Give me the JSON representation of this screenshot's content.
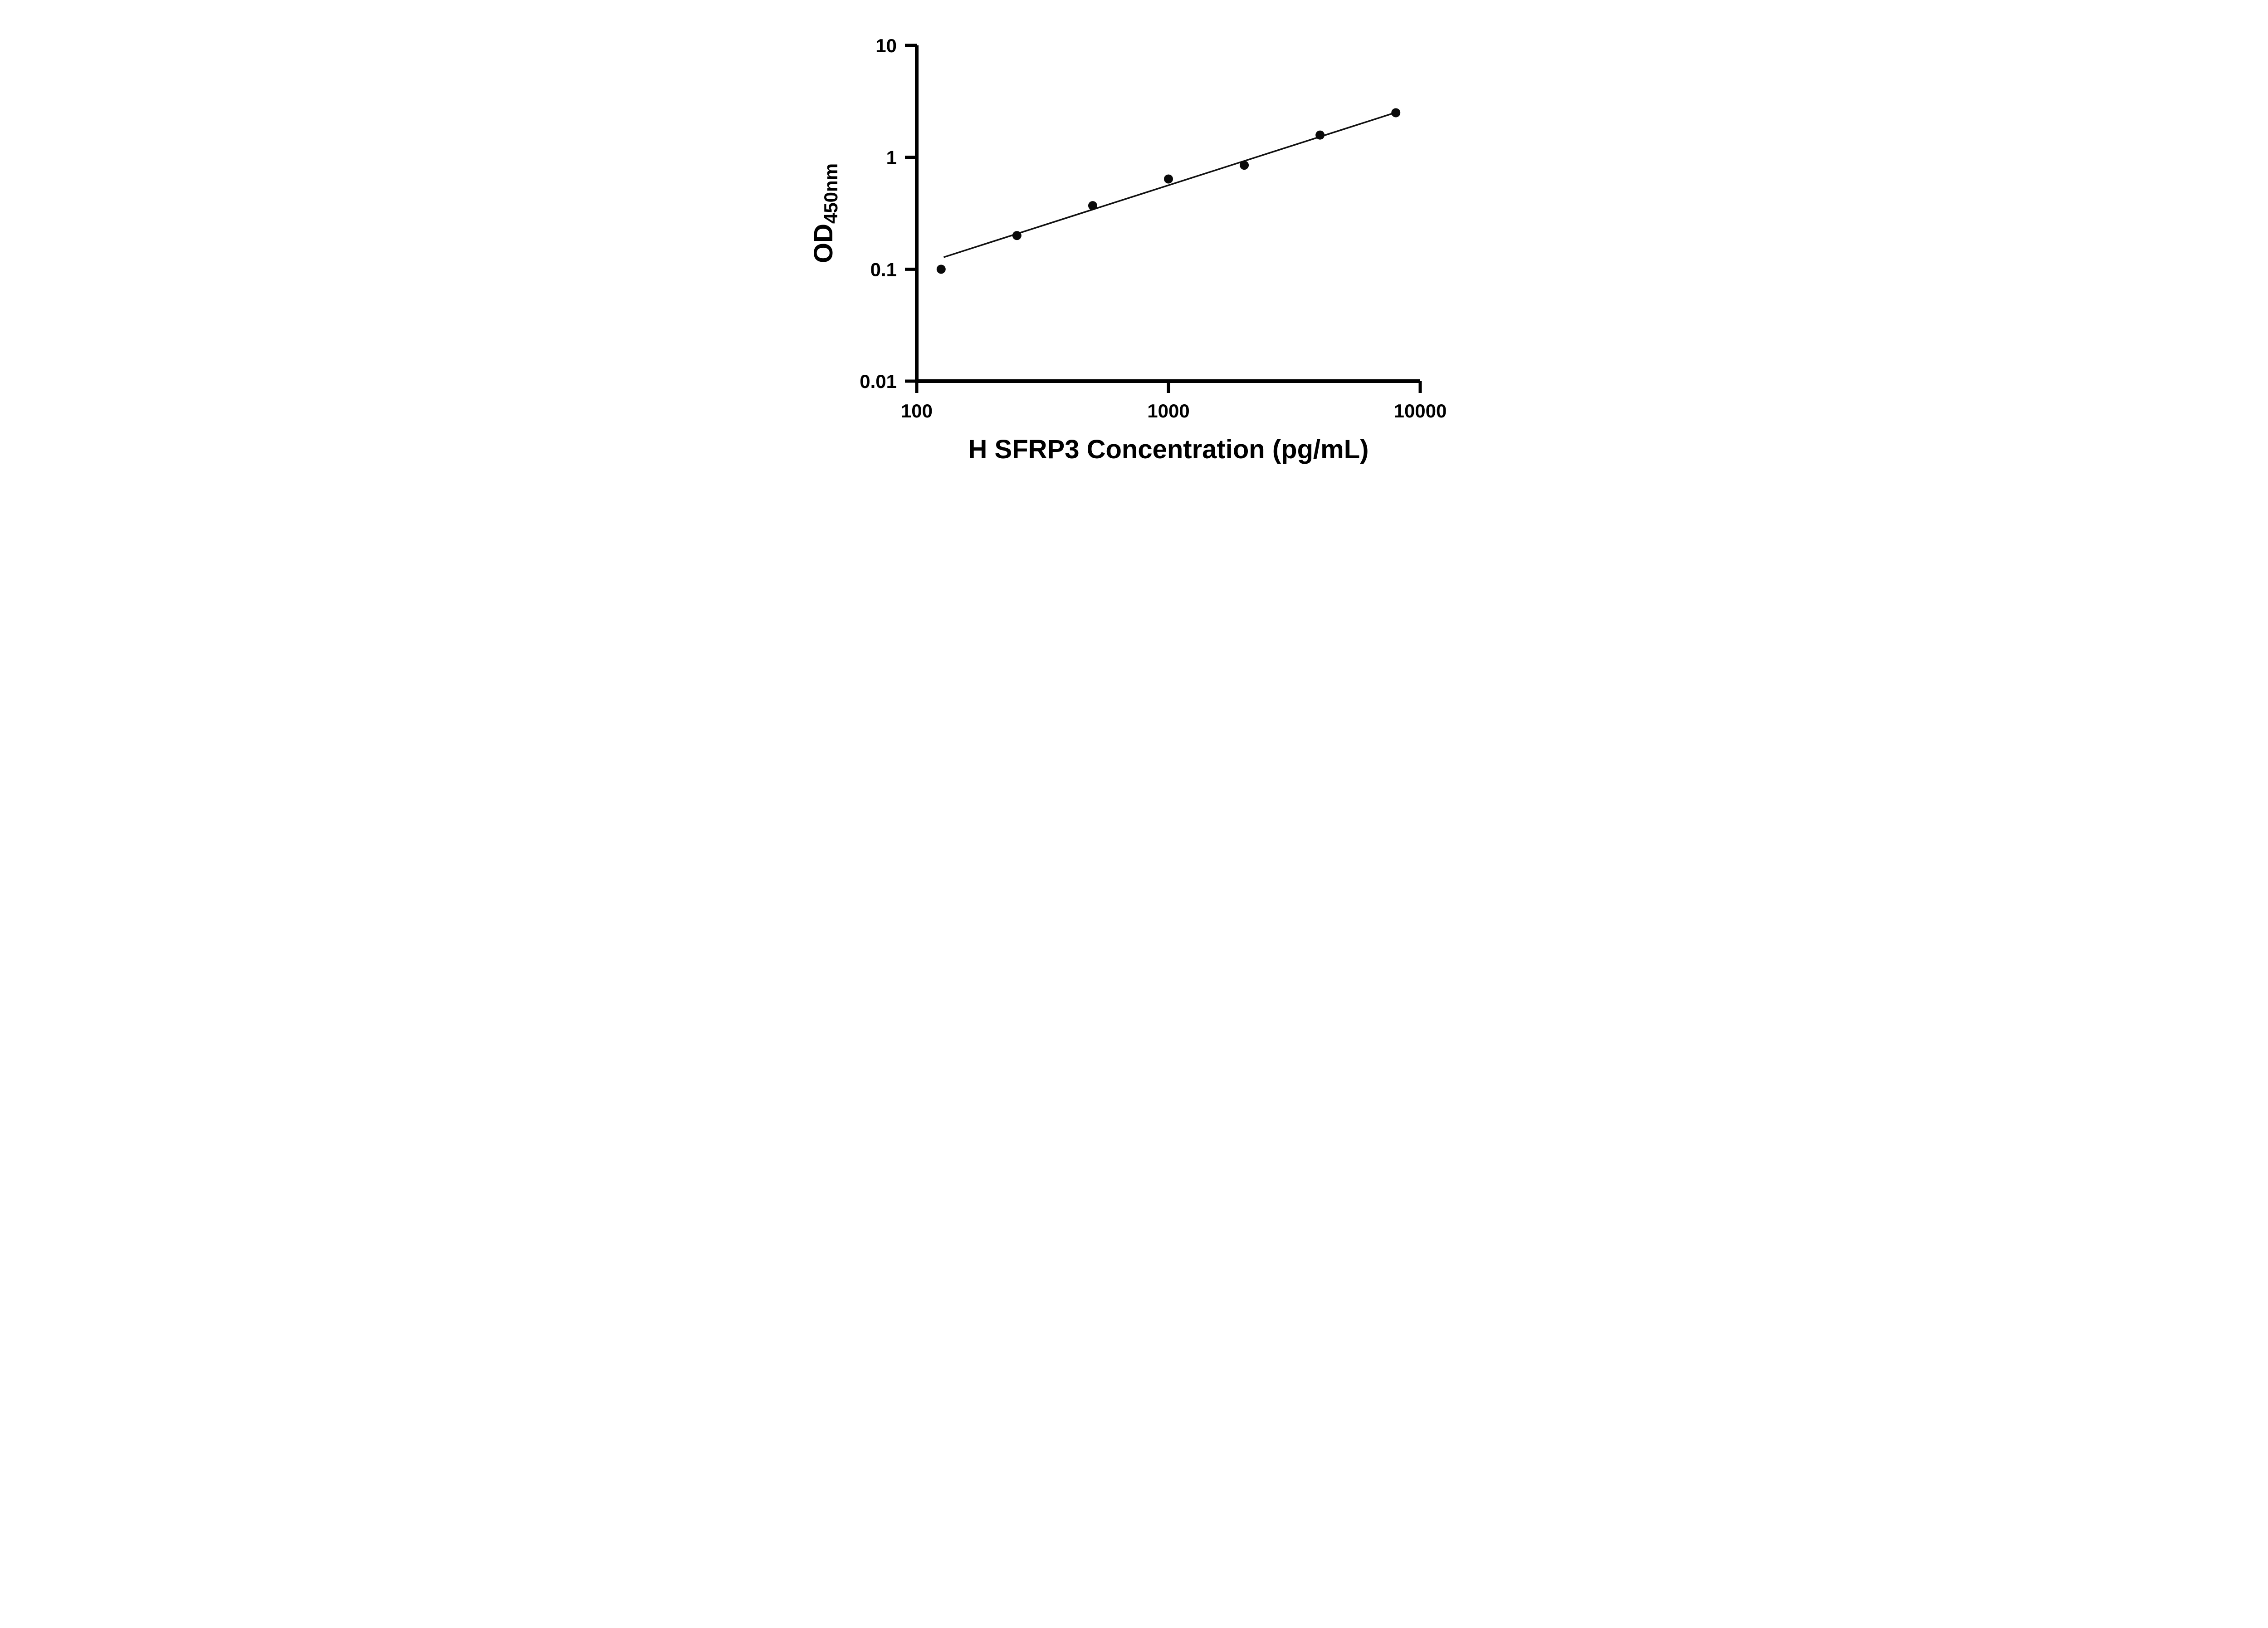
{
  "chart_data": {
    "type": "scatter",
    "title": "",
    "xlabel": "H SFRP3 Concentration (pg/mL)",
    "ylabel_main": "OD",
    "ylabel_sub": "450nm",
    "x_scale": "log",
    "y_scale": "log",
    "xlim": [
      100,
      10000
    ],
    "ylim": [
      0.01,
      10
    ],
    "grid": false,
    "legend": "none",
    "x_ticks": [
      {
        "value": 100,
        "label": "100"
      },
      {
        "value": 1000,
        "label": "1000"
      },
      {
        "value": 10000,
        "label": "10000"
      }
    ],
    "y_ticks": [
      {
        "value": 0.01,
        "label": "0.01"
      },
      {
        "value": 0.1,
        "label": "0.1"
      },
      {
        "value": 1,
        "label": "1"
      },
      {
        "value": 10,
        "label": "10"
      }
    ],
    "points": [
      {
        "x": 125,
        "y": 0.1
      },
      {
        "x": 250,
        "y": 0.2
      },
      {
        "x": 500,
        "y": 0.37
      },
      {
        "x": 1000,
        "y": 0.64
      },
      {
        "x": 2000,
        "y": 0.85
      },
      {
        "x": 4000,
        "y": 1.58
      },
      {
        "x": 8000,
        "y": 2.5
      }
    ],
    "trend_line": {
      "x_start": 128,
      "y_start": 0.128,
      "x_end": 8200,
      "y_end": 2.56
    },
    "colors": {
      "axis": "#000000",
      "marker": "#0a0a0a",
      "line": "#111111",
      "background": "#ffffff"
    }
  }
}
